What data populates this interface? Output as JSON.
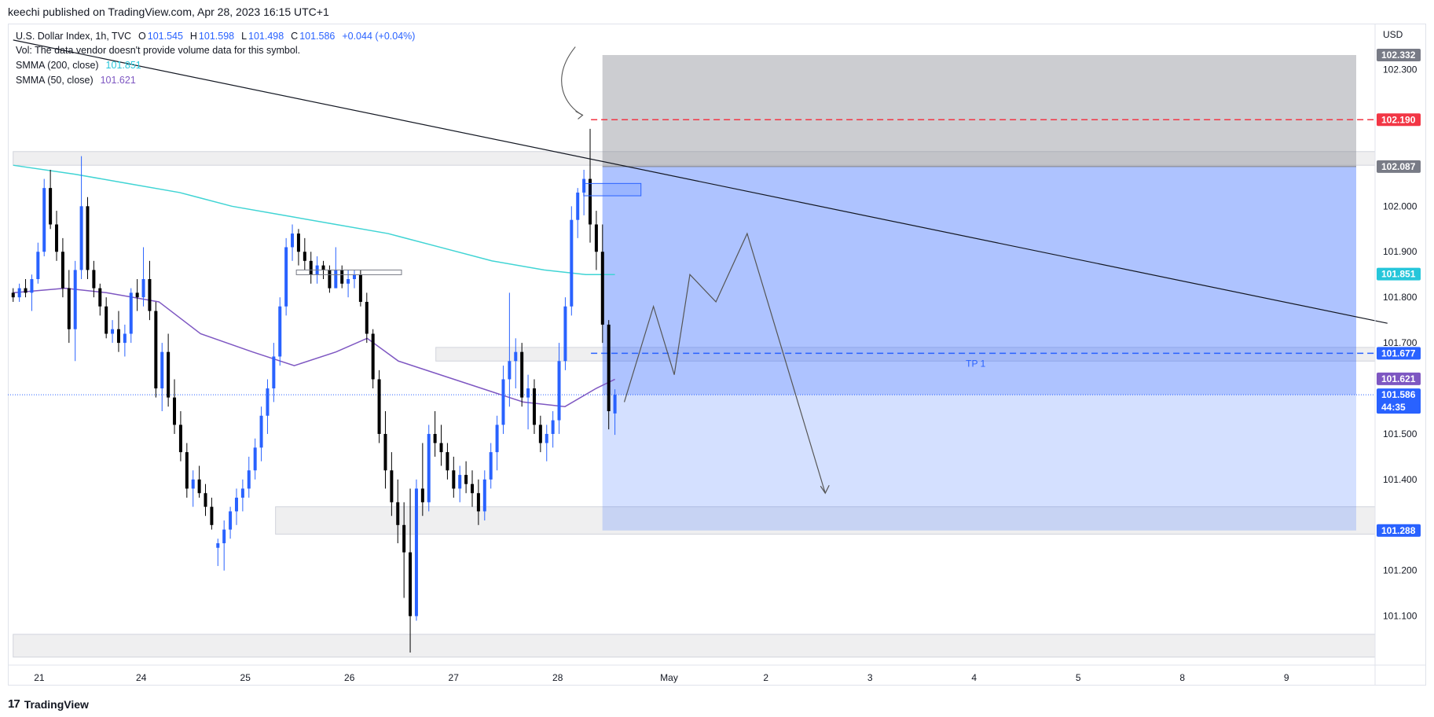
{
  "header": {
    "credit": "keechi published on TradingView.com, Apr 28, 2023 16:15 UTC+1"
  },
  "legend": {
    "symbol": "U.S. Dollar Index, 1h, TVC",
    "o_label": "O",
    "o": "101.545",
    "h_label": "H",
    "h": "101.598",
    "l_label": "L",
    "l": "101.498",
    "c_label": "C",
    "c": "101.586",
    "change": "+0.044 (+0.04%)",
    "vol": "Vol: The data vendor doesn't provide volume data for this symbol.",
    "sma200_label": "SMMA (200, close)",
    "sma200_value": "101.851",
    "sma50_label": "SMMA (50, close)",
    "sma50_value": "101.621"
  },
  "footer": {
    "brand": "TradingView",
    "mark": "17"
  },
  "colors": {
    "up": "#2962ff",
    "down": "#000000",
    "sma200": "#40d4d4",
    "sma50": "#7e57c2",
    "zone_target": "#2962ff",
    "zone_stop": "#787b86",
    "red_line": "#f23645",
    "blue_line": "#2962ff"
  },
  "chart_data": {
    "type": "candlestick",
    "title": "U.S. Dollar Index, 1h, TVC",
    "currency": "USD",
    "ylim": [
      101.01,
      102.38
    ],
    "y_ticks": [
      "102.300",
      "102.000",
      "101.900",
      "101.800",
      "101.700",
      "101.500",
      "101.400",
      "101.200",
      "101.100"
    ],
    "x_ticks": [
      {
        "label": "21",
        "t": 0.15
      },
      {
        "label": "24",
        "t": 1.13
      },
      {
        "label": "25",
        "t": 2.13
      },
      {
        "label": "26",
        "t": 3.13
      },
      {
        "label": "27",
        "t": 4.13
      },
      {
        "label": "28",
        "t": 5.13
      },
      {
        "label": "May",
        "t": 6.2
      },
      {
        "label": "2",
        "t": 7.13
      },
      {
        "label": "3",
        "t": 8.13
      },
      {
        "label": "4",
        "t": 9.13
      },
      {
        "label": "5",
        "t": 10.13
      },
      {
        "label": "8",
        "t": 11.13
      },
      {
        "label": "9",
        "t": 12.13
      }
    ],
    "price_badges": [
      {
        "value": "102.332",
        "color": "#787b86"
      },
      {
        "value": "102.190",
        "color": "#f23645"
      },
      {
        "value": "102.087",
        "color": "#787b86"
      },
      {
        "value": "101.851",
        "color": "#26c6da"
      },
      {
        "value": "101.677",
        "color": "#2962ff"
      },
      {
        "value": "101.621",
        "color": "#7e57c2"
      },
      {
        "value": "101.586",
        "color": "#2962ff",
        "sub": "44:35"
      },
      {
        "value": "101.288",
        "color": "#2962ff"
      }
    ],
    "position": {
      "entry": 101.586,
      "stop": 102.332,
      "entry_zone_top": 102.087,
      "target": 101.288,
      "t_start": 5.56,
      "t_end": 12.8
    },
    "tp_label": "TP 1",
    "tp_level": 101.677,
    "stop_level": 102.19,
    "supply_zones": [
      {
        "top": 102.12,
        "bottom": 102.09,
        "t0": -0.1,
        "t1": 13.1
      },
      {
        "top": 101.69,
        "bottom": 101.66,
        "t0": 3.96,
        "t1": 13.1
      },
      {
        "top": 101.34,
        "bottom": 101.28,
        "t0": 2.42,
        "t1": 13.2
      },
      {
        "top": 101.06,
        "bottom": 101.01,
        "t0": -0.1,
        "t1": 13.2
      }
    ],
    "trendline": [
      {
        "t": -0.1,
        "p": 102.365
      },
      {
        "t": 13.1,
        "p": 101.743
      }
    ],
    "projection": [
      [
        5.77,
        101.57
      ],
      [
        6.05,
        101.78
      ],
      [
        6.25,
        101.63
      ],
      [
        6.4,
        101.85
      ],
      [
        6.65,
        101.79
      ],
      [
        6.95,
        101.94
      ],
      [
        7.7,
        101.37
      ]
    ],
    "sma200": [
      [
        -0.1,
        102.09
      ],
      [
        0.5,
        102.07
      ],
      [
        1,
        102.05
      ],
      [
        1.5,
        102.03
      ],
      [
        2,
        102.0
      ],
      [
        2.5,
        101.98
      ],
      [
        3,
        101.96
      ],
      [
        3.5,
        101.94
      ],
      [
        4,
        101.91
      ],
      [
        4.5,
        101.88
      ],
      [
        5,
        101.86
      ],
      [
        5.4,
        101.85
      ],
      [
        5.68,
        101.85
      ]
    ],
    "sma50": [
      [
        -0.1,
        101.81
      ],
      [
        0.4,
        101.82
      ],
      [
        0.8,
        101.81
      ],
      [
        1.3,
        101.79
      ],
      [
        1.7,
        101.72
      ],
      [
        2.2,
        101.68
      ],
      [
        2.6,
        101.65
      ],
      [
        3.0,
        101.68
      ],
      [
        3.3,
        101.71
      ],
      [
        3.6,
        101.66
      ],
      [
        4.0,
        101.63
      ],
      [
        4.4,
        101.6
      ],
      [
        4.8,
        101.57
      ],
      [
        5.2,
        101.56
      ],
      [
        5.5,
        101.6
      ],
      [
        5.68,
        101.62
      ]
    ],
    "candles": [
      [
        101.81,
        101.82,
        101.79,
        101.8
      ],
      [
        101.8,
        101.83,
        101.79,
        101.82
      ],
      [
        101.82,
        101.84,
        101.8,
        101.81
      ],
      [
        101.81,
        101.85,
        101.77,
        101.84
      ],
      [
        101.84,
        101.92,
        101.83,
        101.9
      ],
      [
        101.9,
        102.06,
        101.89,
        102.04
      ],
      [
        102.04,
        102.08,
        101.95,
        101.96
      ],
      [
        101.96,
        101.99,
        101.88,
        101.9
      ],
      [
        101.9,
        101.93,
        101.8,
        101.82
      ],
      [
        101.82,
        101.86,
        101.7,
        101.73
      ],
      [
        101.73,
        101.88,
        101.66,
        101.86
      ],
      [
        101.86,
        102.11,
        101.84,
        102.0
      ],
      [
        102.0,
        102.02,
        101.84,
        101.86
      ],
      [
        101.86,
        101.88,
        101.8,
        101.82
      ],
      [
        101.82,
        101.83,
        101.76,
        101.78
      ],
      [
        101.78,
        101.8,
        101.71,
        101.72
      ],
      [
        101.72,
        101.75,
        101.7,
        101.73
      ],
      [
        101.73,
        101.77,
        101.68,
        101.7
      ],
      [
        101.7,
        101.74,
        101.67,
        101.72
      ],
      [
        101.72,
        101.82,
        101.7,
        101.81
      ],
      [
        101.81,
        101.84,
        101.77,
        101.8
      ],
      [
        101.8,
        101.91,
        101.78,
        101.84
      ],
      [
        101.84,
        101.88,
        101.75,
        101.77
      ],
      [
        101.77,
        101.79,
        101.58,
        101.6
      ],
      [
        101.6,
        101.7,
        101.55,
        101.68
      ],
      [
        101.68,
        101.72,
        101.56,
        101.58
      ],
      [
        101.58,
        101.62,
        101.5,
        101.52
      ],
      [
        101.52,
        101.55,
        101.44,
        101.46
      ],
      [
        101.46,
        101.48,
        101.36,
        101.38
      ],
      [
        101.38,
        101.42,
        101.34,
        101.4
      ],
      [
        101.4,
        101.43,
        101.36,
        101.37
      ],
      [
        101.37,
        101.39,
        101.32,
        101.34
      ],
      [
        101.34,
        101.36,
        101.29,
        101.3
      ],
      [
        101.25,
        101.27,
        101.21,
        101.26
      ],
      [
        101.26,
        101.31,
        101.2,
        101.29
      ],
      [
        101.29,
        101.34,
        101.27,
        101.33
      ],
      [
        101.33,
        101.38,
        101.3,
        101.36
      ],
      [
        101.36,
        101.4,
        101.33,
        101.38
      ],
      [
        101.38,
        101.45,
        101.36,
        101.42
      ],
      [
        101.42,
        101.49,
        101.4,
        101.47
      ],
      [
        101.47,
        101.56,
        101.44,
        101.54
      ],
      [
        101.54,
        101.62,
        101.5,
        101.6
      ],
      [
        101.6,
        101.7,
        101.57,
        101.67
      ],
      [
        101.67,
        101.8,
        101.65,
        101.78
      ],
      [
        101.78,
        101.93,
        101.76,
        101.91
      ],
      [
        101.91,
        101.96,
        101.88,
        101.94
      ],
      [
        101.94,
        101.95,
        101.87,
        101.9
      ],
      [
        101.9,
        101.93,
        101.86,
        101.88
      ],
      [
        101.88,
        101.9,
        101.83,
        101.85
      ],
      [
        101.85,
        101.89,
        101.83,
        101.87
      ],
      [
        101.87,
        101.88,
        101.84,
        101.86
      ],
      [
        101.86,
        101.87,
        101.81,
        101.82
      ],
      [
        101.82,
        101.91,
        101.82,
        101.86
      ],
      [
        101.86,
        101.87,
        101.82,
        101.83
      ],
      [
        101.83,
        101.86,
        101.8,
        101.84
      ],
      [
        101.84,
        101.86,
        101.82,
        101.85
      ],
      [
        101.85,
        101.86,
        101.78,
        101.79
      ],
      [
        101.79,
        101.81,
        101.7,
        101.72
      ],
      [
        101.72,
        101.73,
        101.6,
        101.62
      ],
      [
        101.62,
        101.64,
        101.48,
        101.5
      ],
      [
        101.5,
        101.55,
        101.38,
        101.42
      ],
      [
        101.42,
        101.46,
        101.32,
        101.35
      ],
      [
        101.35,
        101.4,
        101.26,
        101.3
      ],
      [
        101.3,
        101.35,
        101.14,
        101.24
      ],
      [
        101.24,
        101.38,
        101.02,
        101.1
      ],
      [
        101.1,
        101.4,
        101.09,
        101.38
      ],
      [
        101.38,
        101.48,
        101.32,
        101.35
      ],
      [
        101.35,
        101.52,
        101.33,
        101.5
      ],
      [
        101.5,
        101.55,
        101.45,
        101.48
      ],
      [
        101.48,
        101.52,
        101.43,
        101.46
      ],
      [
        101.46,
        101.48,
        101.4,
        101.42
      ],
      [
        101.42,
        101.45,
        101.36,
        101.38
      ],
      [
        101.38,
        101.43,
        101.35,
        101.41
      ],
      [
        101.41,
        101.44,
        101.37,
        101.39
      ],
      [
        101.39,
        101.42,
        101.34,
        101.37
      ],
      [
        101.37,
        101.4,
        101.3,
        101.33
      ],
      [
        101.33,
        101.42,
        101.31,
        101.4
      ],
      [
        101.4,
        101.48,
        101.38,
        101.46
      ],
      [
        101.46,
        101.54,
        101.42,
        101.52
      ],
      [
        101.52,
        101.65,
        101.5,
        101.62
      ],
      [
        101.62,
        101.81,
        101.56,
        101.66
      ],
      [
        101.66,
        101.71,
        101.6,
        101.68
      ],
      [
        101.68,
        101.7,
        101.56,
        101.58
      ],
      [
        101.58,
        101.63,
        101.51,
        101.6
      ],
      [
        101.6,
        101.62,
        101.5,
        101.52
      ],
      [
        101.52,
        101.54,
        101.46,
        101.48
      ],
      [
        101.48,
        101.52,
        101.44,
        101.5
      ],
      [
        101.5,
        101.55,
        101.47,
        101.53
      ],
      [
        101.53,
        101.7,
        101.5,
        101.66
      ],
      [
        101.66,
        101.8,
        101.64,
        101.78
      ],
      [
        101.78,
        102.0,
        101.76,
        101.97
      ],
      [
        101.97,
        102.04,
        101.93,
        102.03
      ],
      [
        102.03,
        102.08,
        101.98,
        102.06
      ],
      [
        102.06,
        102.17,
        101.92,
        101.96
      ],
      [
        101.96,
        101.99,
        101.86,
        101.9
      ],
      [
        101.9,
        101.96,
        101.7,
        101.74
      ],
      [
        101.74,
        101.75,
        101.51,
        101.55
      ],
      [
        101.545,
        101.598,
        101.498,
        101.586
      ]
    ]
  }
}
